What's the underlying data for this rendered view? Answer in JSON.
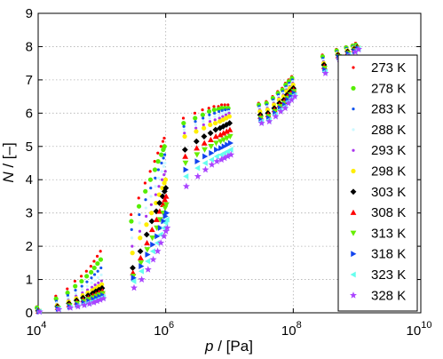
{
  "chart_data": {
    "type": "scatter",
    "xscale": "log",
    "xlim": [
      10000,
      10000000000
    ],
    "ylim": [
      0,
      9
    ],
    "grid": true,
    "legend_position": "right",
    "x_ticks": [
      {
        "value": 10000,
        "mantissa": "10",
        "exp": "4"
      },
      {
        "value": 1000000,
        "mantissa": "10",
        "exp": "6"
      },
      {
        "value": 100000000,
        "mantissa": "10",
        "exp": "8"
      },
      {
        "value": 10000000000,
        "mantissa": "10",
        "exp": "10"
      }
    ],
    "y_ticks": [
      "0",
      "1",
      "2",
      "3",
      "4",
      "5",
      "6",
      "7",
      "8",
      "9"
    ],
    "xlabel": {
      "var": "p",
      "unit": " / [Pa]"
    },
    "ylabel": {
      "var": "N",
      "unit": " / [–]"
    },
    "series": [
      {
        "name": "273 K",
        "color": "#ff0000",
        "marker": "dot",
        "shift": 0.0,
        "vals": [
          0.18,
          0.5,
          0.72,
          0.95,
          1.1,
          1.25,
          1.4,
          1.55,
          1.7,
          1.85,
          2.95,
          3.45,
          3.9,
          4.25,
          4.55,
          4.8,
          5.0,
          5.15,
          5.25,
          5.85,
          6.0,
          6.1,
          6.15,
          6.2,
          6.2,
          6.25,
          6.25,
          6.25,
          6.3,
          6.35,
          6.5,
          6.65,
          6.75,
          6.9,
          7.0,
          7.1,
          7.75,
          7.92,
          8.0,
          8.05,
          8.1,
          8.1
        ]
      },
      {
        "name": "278 K",
        "color": "#55ee00",
        "marker": "bigdot",
        "shift": 0.14,
        "vals": [
          0.15,
          0.42,
          0.6,
          0.8,
          0.95,
          1.1,
          1.22,
          1.35,
          1.48,
          1.6,
          2.75,
          3.2,
          3.65,
          4.0,
          4.3,
          4.55,
          4.75,
          4.9,
          5.0,
          5.7,
          5.85,
          5.95,
          6.05,
          6.1,
          6.12,
          6.15,
          6.15,
          6.15,
          6.25,
          6.3,
          6.45,
          6.6,
          6.7,
          6.85,
          6.95,
          7.05,
          7.7,
          7.88,
          7.97,
          8.02,
          8.05,
          8.05
        ]
      },
      {
        "name": "283 K",
        "color": "#1155ee",
        "marker": "dot",
        "shift": 0.28,
        "vals": [
          0.12,
          0.35,
          0.52,
          0.68,
          0.8,
          0.93,
          1.05,
          1.15,
          1.25,
          1.35,
          2.5,
          2.95,
          3.4,
          3.75,
          4.05,
          4.3,
          4.5,
          4.65,
          4.75,
          5.6,
          5.75,
          5.85,
          5.95,
          6.0,
          6.05,
          6.08,
          6.1,
          6.1,
          6.2,
          6.25,
          6.4,
          6.55,
          6.65,
          6.8,
          6.9,
          7.0,
          7.65,
          7.85,
          7.95,
          8.0,
          8.03,
          8.03
        ]
      },
      {
        "name": "288 K",
        "color": "#ccf8ff",
        "marker": "dot",
        "shift": 0.42,
        "vals": [
          0.1,
          0.3,
          0.45,
          0.58,
          0.7,
          0.8,
          0.9,
          0.98,
          1.06,
          1.14,
          2.25,
          2.7,
          3.15,
          3.5,
          3.8,
          4.05,
          4.25,
          4.4,
          4.5,
          5.5,
          5.65,
          5.75,
          5.85,
          5.9,
          5.95,
          6.0,
          6.02,
          6.05,
          6.15,
          6.2,
          6.35,
          6.5,
          6.6,
          6.75,
          6.85,
          6.95,
          7.6,
          7.82,
          7.92,
          7.98,
          8.02,
          8.02
        ]
      },
      {
        "name": "293 K",
        "color": "#aa33ee",
        "marker": "dot",
        "shift": 0.56,
        "vals": [
          0.08,
          0.25,
          0.38,
          0.5,
          0.6,
          0.69,
          0.77,
          0.84,
          0.9,
          0.96,
          2.0,
          2.45,
          2.9,
          3.25,
          3.55,
          3.8,
          4.0,
          4.15,
          4.25,
          5.4,
          5.55,
          5.65,
          5.75,
          5.8,
          5.85,
          5.9,
          5.95,
          6.0,
          6.1,
          6.15,
          6.3,
          6.45,
          6.55,
          6.7,
          6.8,
          6.9,
          7.55,
          7.8,
          7.9,
          7.96,
          8.0,
          8.0
        ]
      },
      {
        "name": "298 K",
        "color": "#ffee00",
        "marker": "bigdot",
        "shift": 0.7,
        "vals": [
          0.07,
          0.22,
          0.33,
          0.43,
          0.52,
          0.6,
          0.67,
          0.73,
          0.79,
          0.85,
          1.8,
          2.25,
          2.65,
          3.0,
          3.3,
          3.55,
          3.75,
          3.9,
          4.0,
          5.3,
          5.45,
          5.55,
          5.65,
          5.7,
          5.75,
          5.8,
          5.85,
          5.9,
          6.05,
          6.1,
          6.25,
          6.4,
          6.5,
          6.65,
          6.75,
          6.85,
          7.5,
          7.78,
          7.88,
          7.95,
          8.0,
          8.0
        ]
      },
      {
        "name": "303 K",
        "color": "#000000",
        "marker": "diamond",
        "shift": 0.84,
        "vals": [
          0.06,
          0.19,
          0.28,
          0.37,
          0.45,
          0.52,
          0.58,
          0.64,
          0.69,
          0.74,
          1.35,
          1.85,
          2.35,
          2.75,
          3.05,
          3.3,
          3.5,
          3.65,
          3.75,
          4.9,
          5.15,
          5.3,
          5.4,
          5.5,
          5.55,
          5.6,
          5.65,
          5.7,
          5.95,
          6.0,
          6.15,
          6.3,
          6.4,
          6.55,
          6.65,
          6.75,
          7.45,
          7.75,
          7.85,
          7.92,
          7.98,
          7.98
        ]
      },
      {
        "name": "308 K",
        "color": "#ff0000",
        "marker": "triangle-up",
        "shift": 0.98,
        "vals": [
          0.05,
          0.16,
          0.24,
          0.32,
          0.39,
          0.45,
          0.51,
          0.56,
          0.61,
          0.65,
          1.2,
          1.65,
          2.1,
          2.5,
          2.8,
          3.05,
          3.25,
          3.4,
          3.5,
          4.7,
          4.95,
          5.1,
          5.2,
          5.3,
          5.35,
          5.4,
          5.45,
          5.5,
          5.9,
          5.95,
          6.1,
          6.25,
          6.35,
          6.5,
          6.6,
          6.7,
          7.4,
          7.72,
          7.82,
          7.9,
          7.96,
          7.96
        ]
      },
      {
        "name": "313 K",
        "color": "#66ee00",
        "marker": "triangle-down",
        "shift": 1.12,
        "vals": [
          0.04,
          0.14,
          0.21,
          0.28,
          0.34,
          0.4,
          0.45,
          0.5,
          0.54,
          0.58,
          1.1,
          1.5,
          1.9,
          2.25,
          2.55,
          2.8,
          3.0,
          3.15,
          3.25,
          4.5,
          4.75,
          4.9,
          5.0,
          5.1,
          5.15,
          5.2,
          5.25,
          5.3,
          5.85,
          5.9,
          6.05,
          6.2,
          6.3,
          6.45,
          6.55,
          6.65,
          7.35,
          7.7,
          7.8,
          7.88,
          7.95,
          7.95
        ]
      },
      {
        "name": "318 K",
        "color": "#1144ee",
        "marker": "triangle-right",
        "shift": 1.26,
        "vals": [
          0.04,
          0.12,
          0.18,
          0.24,
          0.3,
          0.35,
          0.4,
          0.44,
          0.48,
          0.52,
          1.05,
          1.4,
          1.75,
          2.05,
          2.3,
          2.55,
          2.75,
          2.9,
          3.0,
          4.3,
          4.55,
          4.7,
          4.8,
          4.9,
          4.95,
          5.0,
          5.05,
          5.1,
          5.8,
          5.85,
          6.0,
          6.15,
          6.25,
          6.4,
          6.5,
          6.6,
          7.3,
          7.68,
          7.78,
          7.86,
          7.94,
          7.94
        ]
      },
      {
        "name": "323 K",
        "color": "#66ffee",
        "marker": "triangle-left",
        "shift": 1.4,
        "vals": [
          0.03,
          0.11,
          0.16,
          0.21,
          0.26,
          0.31,
          0.35,
          0.39,
          0.43,
          0.47,
          0.95,
          1.25,
          1.55,
          1.85,
          2.1,
          2.35,
          2.55,
          2.7,
          2.8,
          4.1,
          4.35,
          4.5,
          4.6,
          4.7,
          4.75,
          4.8,
          4.85,
          4.9,
          5.75,
          5.8,
          5.95,
          6.1,
          6.2,
          6.35,
          6.45,
          6.55,
          7.25,
          7.65,
          7.75,
          7.85,
          7.93,
          7.93
        ]
      },
      {
        "name": "328 K",
        "color": "#aa44ff",
        "marker": "star",
        "shift": 1.54,
        "vals": [
          0.03,
          0.1,
          0.15,
          0.19,
          0.23,
          0.27,
          0.31,
          0.35,
          0.39,
          0.43,
          0.75,
          1.0,
          1.3,
          1.6,
          1.85,
          2.1,
          2.3,
          2.45,
          2.55,
          3.8,
          4.1,
          4.3,
          4.45,
          4.55,
          4.6,
          4.65,
          4.7,
          4.75,
          5.7,
          5.75,
          5.9,
          6.05,
          6.15,
          6.3,
          6.4,
          6.5,
          7.2,
          7.62,
          7.72,
          7.84,
          7.92,
          7.92
        ]
      }
    ]
  }
}
